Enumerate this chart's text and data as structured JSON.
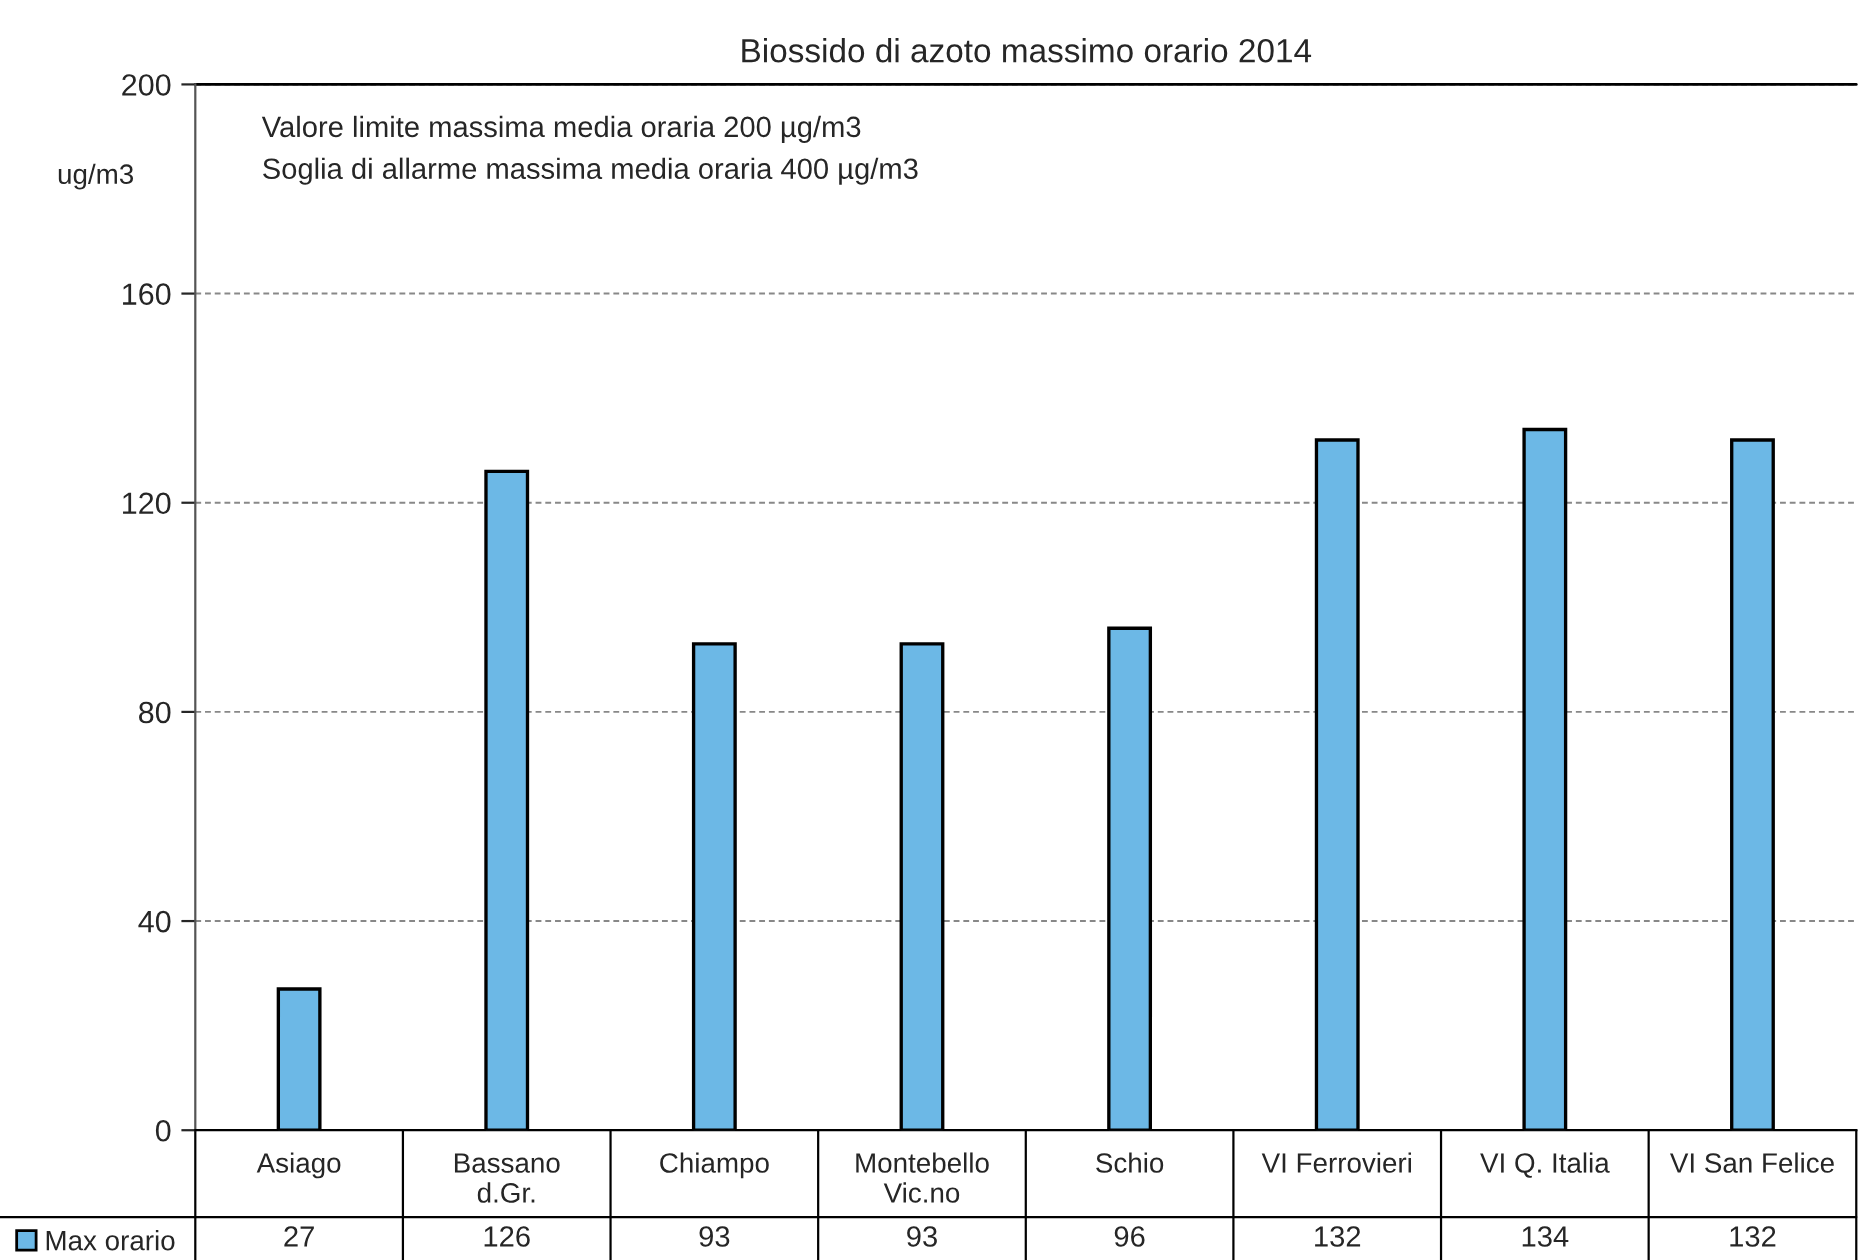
{
  "chart_data": {
    "type": "bar",
    "title": "Biossido di azoto massimo orario 2014",
    "ylabel": "ug/m3",
    "categories": [
      "Asiago",
      "Bassano\nd.Gr.",
      "Chiampo",
      "Montebello\nVic.no",
      "Schio",
      "VI Ferrovieri",
      "VI Q. Italia",
      "VI San Felice"
    ],
    "series": [
      {
        "name": "Max orario",
        "color": "#6cb8e6",
        "values": [
          27,
          126,
          93,
          93,
          96,
          132,
          134,
          132
        ]
      }
    ],
    "ylim": [
      0,
      200
    ],
    "yticks": [
      0,
      40,
      80,
      120,
      160,
      200
    ],
    "grid": "y",
    "data_labels": true,
    "legend": "bottom left",
    "annotations": [
      "Valore limite massima media oraria 200 µg/m3",
      "Soglia di allarme massima media oraria 400 µg/m3"
    ]
  }
}
